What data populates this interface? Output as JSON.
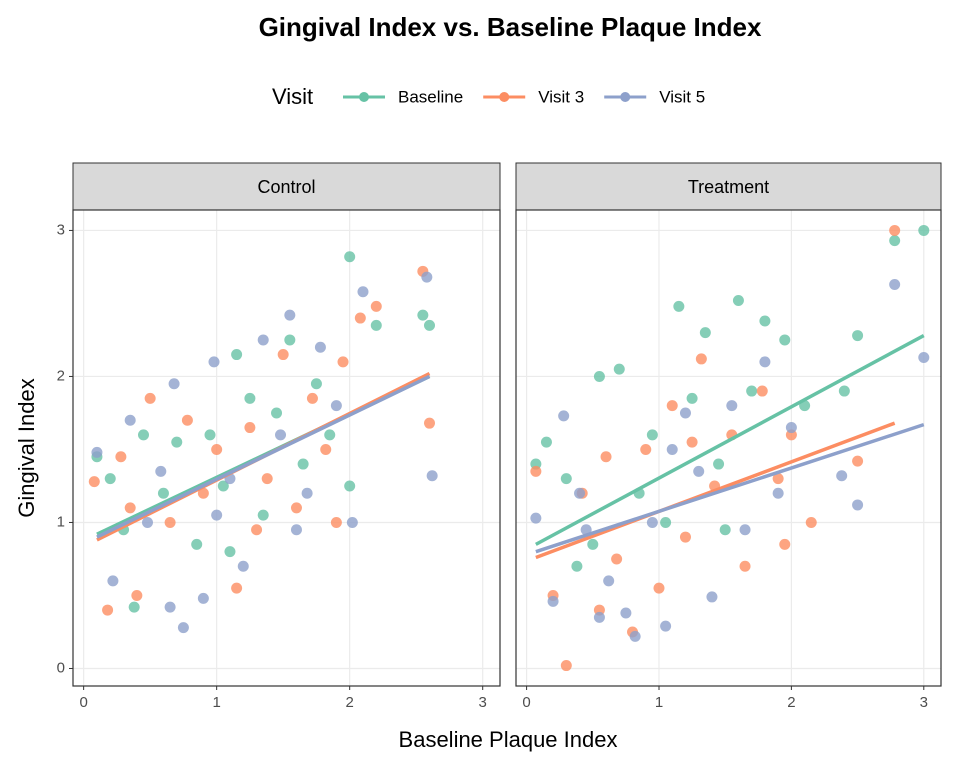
{
  "chart_data": {
    "type": "scatter",
    "title": "Gingival Index vs. Baseline Plaque Index",
    "legend_title": "Visit",
    "x_label": "Baseline Plaque Index",
    "y_label": "Gingival Index",
    "xlim": [
      -0.08,
      3.13
    ],
    "ylim": [
      -0.12,
      3.14
    ],
    "xticks": [
      0,
      1,
      2,
      3
    ],
    "yticks": [
      0,
      1,
      2,
      3
    ],
    "grid": true,
    "series": [
      {
        "name": "Baseline",
        "color": "#66c2a5"
      },
      {
        "name": "Visit 3",
        "color": "#fc8d62"
      },
      {
        "name": "Visit 5",
        "color": "#8da0cb"
      }
    ],
    "panels": [
      {
        "title": "Control",
        "series": [
          {
            "x": [
              0.1,
              0.2,
              0.38,
              0.45,
              0.6,
              0.7,
              0.85,
              0.95,
              1.05,
              1.15,
              1.25,
              1.35,
              1.45,
              1.55,
              1.65,
              1.75,
              1.85,
              2.0,
              2.0,
              2.2,
              2.55,
              2.6,
              0.3,
              1.1
            ],
            "y": [
              1.45,
              1.3,
              0.42,
              1.6,
              1.2,
              1.55,
              0.85,
              1.6,
              1.25,
              2.15,
              1.85,
              1.05,
              1.75,
              2.25,
              1.4,
              1.95,
              1.6,
              2.82,
              1.25,
              2.35,
              2.42,
              2.35,
              0.95,
              0.8
            ],
            "fit_x": [
              0.1,
              2.6
            ],
            "fit_y": [
              0.92,
              2.0
            ]
          },
          {
            "x": [
              0.08,
              0.18,
              0.28,
              0.4,
              0.5,
              0.65,
              0.78,
              0.9,
              1.0,
              1.15,
              1.25,
              1.38,
              1.5,
              1.6,
              1.72,
              1.82,
              1.95,
              2.08,
              2.2,
              2.55,
              2.6,
              0.35,
              1.3,
              1.9
            ],
            "y": [
              1.28,
              0.4,
              1.45,
              0.5,
              1.85,
              1.0,
              1.7,
              1.2,
              1.5,
              0.55,
              1.65,
              1.3,
              2.15,
              1.1,
              1.85,
              1.5,
              2.1,
              2.4,
              2.48,
              2.72,
              1.68,
              1.1,
              0.95,
              1.0
            ],
            "fit_x": [
              0.1,
              2.6
            ],
            "fit_y": [
              0.88,
              2.02
            ]
          },
          {
            "x": [
              0.1,
              0.22,
              0.35,
              0.48,
              0.58,
              0.68,
              0.75,
              0.9,
              0.98,
              1.1,
              1.2,
              1.35,
              1.48,
              1.55,
              1.68,
              1.78,
              1.9,
              2.02,
              2.1,
              2.58,
              2.62,
              0.65,
              1.0,
              1.6
            ],
            "y": [
              1.48,
              0.6,
              1.7,
              1.0,
              1.35,
              1.95,
              0.28,
              0.48,
              2.1,
              1.3,
              0.7,
              2.25,
              1.6,
              2.42,
              1.2,
              2.2,
              1.8,
              1.0,
              2.58,
              2.68,
              1.32,
              0.42,
              1.05,
              0.95
            ],
            "fit_x": [
              0.1,
              2.6
            ],
            "fit_y": [
              0.9,
              2.0
            ]
          }
        ]
      },
      {
        "title": "Treatment",
        "series": [
          {
            "x": [
              0.07,
              0.15,
              0.3,
              0.38,
              0.55,
              0.7,
              0.85,
              0.95,
              1.05,
              1.15,
              1.25,
              1.35,
              1.45,
              1.6,
              1.7,
              1.8,
              1.95,
              2.1,
              2.4,
              2.5,
              2.78,
              3.0,
              0.5,
              1.5
            ],
            "y": [
              1.4,
              1.55,
              1.3,
              0.7,
              2.0,
              2.05,
              1.2,
              1.6,
              1.0,
              2.48,
              1.85,
              2.3,
              1.4,
              2.52,
              1.9,
              2.38,
              2.25,
              1.8,
              1.9,
              2.28,
              2.93,
              3.0,
              0.85,
              0.95
            ],
            "fit_x": [
              0.07,
              3.0
            ],
            "fit_y": [
              0.85,
              2.28
            ]
          },
          {
            "x": [
              0.07,
              0.2,
              0.3,
              0.42,
              0.55,
              0.68,
              0.8,
              0.9,
              1.0,
              1.1,
              1.2,
              1.32,
              1.42,
              1.55,
              1.65,
              1.78,
              1.9,
              2.0,
              2.15,
              2.5,
              2.78,
              0.6,
              1.25,
              1.95
            ],
            "y": [
              1.35,
              0.5,
              0.02,
              1.2,
              0.4,
              0.75,
              0.25,
              1.5,
              0.55,
              1.8,
              0.9,
              2.12,
              1.25,
              1.6,
              0.7,
              1.9,
              1.3,
              1.6,
              1.0,
              1.42,
              3.0,
              1.45,
              1.55,
              0.85
            ],
            "fit_x": [
              0.07,
              2.78
            ],
            "fit_y": [
              0.76,
              1.68
            ]
          },
          {
            "x": [
              0.07,
              0.2,
              0.28,
              0.4,
              0.55,
              0.62,
              0.75,
              0.82,
              0.95,
              1.05,
              1.2,
              1.3,
              1.4,
              1.55,
              1.65,
              1.8,
              1.9,
              2.0,
              2.38,
              2.5,
              2.78,
              3.0,
              1.1,
              0.45
            ],
            "y": [
              1.03,
              0.46,
              1.73,
              1.2,
              0.35,
              0.6,
              0.38,
              0.22,
              1.0,
              0.29,
              1.75,
              1.35,
              0.49,
              1.8,
              0.95,
              2.1,
              1.2,
              1.65,
              1.32,
              1.12,
              2.63,
              2.13,
              1.5,
              0.95
            ],
            "fit_x": [
              0.07,
              3.0
            ],
            "fit_y": [
              0.8,
              1.67
            ]
          }
        ]
      }
    ]
  }
}
